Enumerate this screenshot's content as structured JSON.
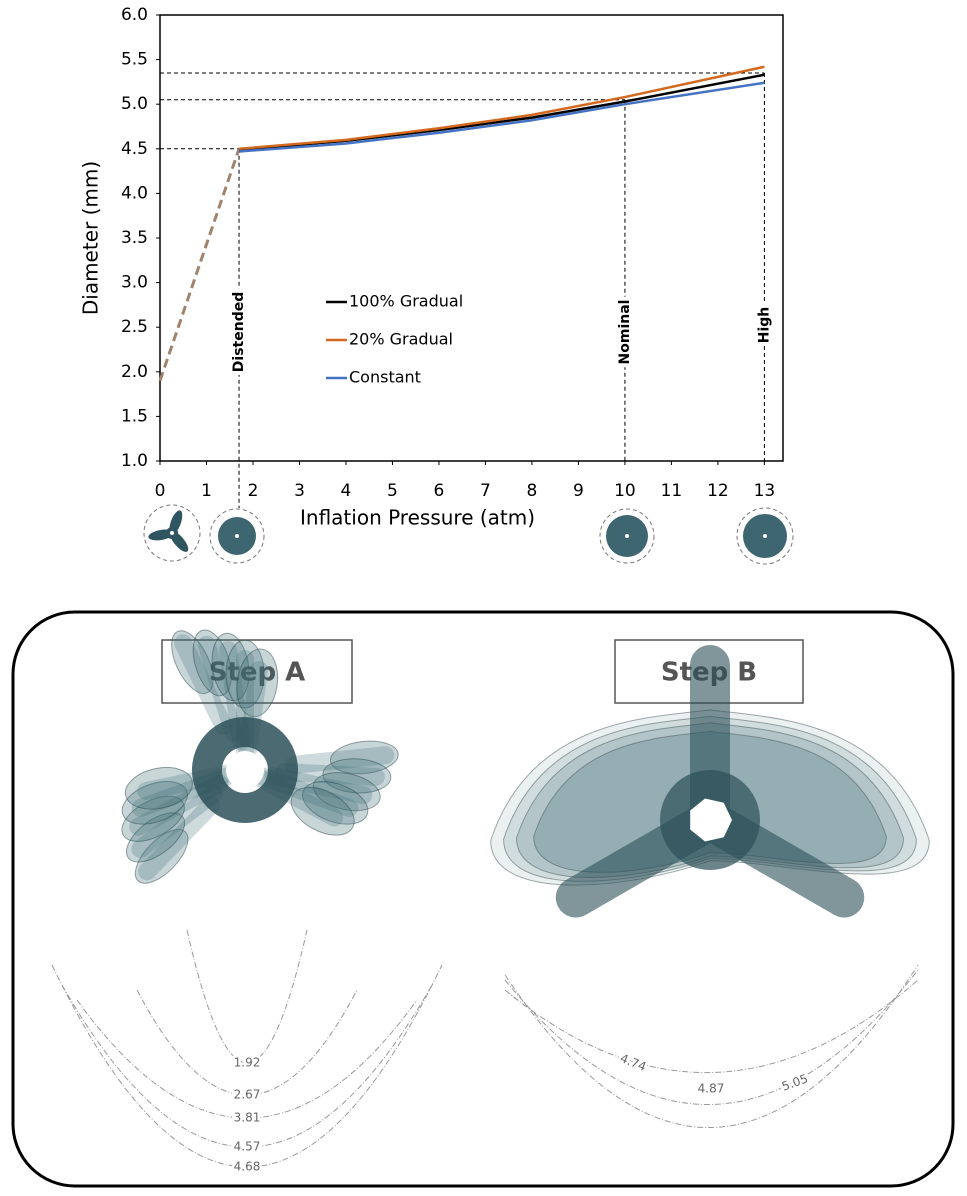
{
  "chart_data": {
    "type": "line",
    "x_label": "Inflation Pressure (atm)",
    "y_label": "Diameter (mm)",
    "xlim": [
      0,
      13.4
    ],
    "xticks": [
      0,
      1,
      2,
      3,
      4,
      5,
      6,
      7,
      8,
      9,
      10,
      11,
      12,
      13
    ],
    "ylim": [
      1,
      6
    ],
    "yticks": [
      {
        "value": 1,
        "label": "1.0"
      },
      {
        "value": 1.5,
        "label": "1.5"
      },
      {
        "value": 2,
        "label": "2.0"
      },
      {
        "value": 2.5,
        "label": "2.5"
      },
      {
        "value": 3,
        "label": "3.0"
      },
      {
        "value": 3.5,
        "label": "3.5"
      },
      {
        "value": 4,
        "label": "4.0"
      },
      {
        "value": 4.5,
        "label": "4.5"
      },
      {
        "value": 5,
        "label": "5.0"
      },
      {
        "value": 5.5,
        "label": "5.5"
      },
      {
        "value": 6,
        "label": "6.0"
      }
    ],
    "grid": false,
    "legend": "center",
    "series": [
      {
        "color": "#a0826d",
        "dashed": true,
        "x": [
          0,
          1.7
        ],
        "values": [
          1.9,
          4.5
        ]
      },
      {
        "name": "100% Gradual",
        "color": "#000000",
        "x": [
          1.7,
          4,
          6,
          8,
          10,
          13
        ],
        "values": [
          4.49,
          4.59,
          4.71,
          4.85,
          5.03,
          5.33
        ]
      },
      {
        "name": "20% Gradual",
        "color": "#d2691e",
        "x": [
          1.7,
          4,
          6,
          8,
          10,
          13
        ],
        "values": [
          4.5,
          4.6,
          4.73,
          4.88,
          5.08,
          5.42
        ]
      },
      {
        "name": "Constant",
        "color": "#4472c4",
        "x": [
          1.7,
          4,
          6,
          8,
          10,
          13
        ],
        "values": [
          4.47,
          4.56,
          4.68,
          4.82,
          5.0,
          5.24
        ]
      }
    ],
    "reference_levels": [
      {
        "x": 1.7,
        "y": 4.5
      },
      {
        "x": 10,
        "y": 5.05
      },
      {
        "x": 13,
        "y": 5.35
      }
    ],
    "annotations": [
      {
        "x": 1.7,
        "label": "Distended"
      },
      {
        "x": 10,
        "label": "Nominal"
      },
      {
        "x": 13,
        "label": "High"
      }
    ]
  },
  "panels": [
    {
      "title": "Step A",
      "dimensions": [
        "1.92",
        "2.67",
        "3.81",
        "4.57",
        "4.68"
      ]
    },
    {
      "title": "Step B",
      "dimensions": [
        "4.74",
        "4.87",
        "5.05"
      ]
    }
  ]
}
